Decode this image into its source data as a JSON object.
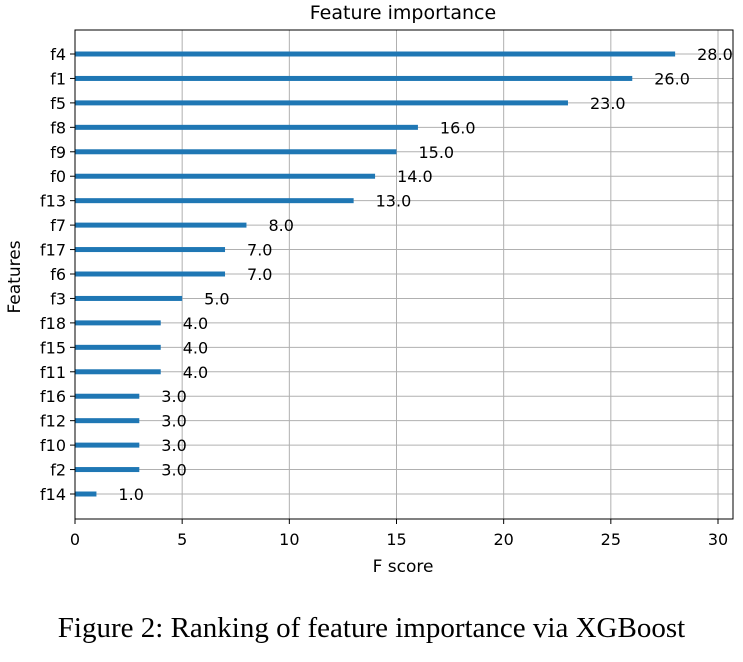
{
  "chart_data": {
    "type": "bar",
    "orientation": "horizontal",
    "title": "Feature importance",
    "xlabel": "F score",
    "ylabel": "Features",
    "xlim": [
      0,
      30.7
    ],
    "xticks": [
      0,
      5,
      10,
      15,
      20,
      25,
      30
    ],
    "grid": true,
    "bar_color": "#1f77b4",
    "categories": [
      "f4",
      "f1",
      "f5",
      "f8",
      "f9",
      "f0",
      "f13",
      "f7",
      "f17",
      "f6",
      "f3",
      "f18",
      "f15",
      "f11",
      "f16",
      "f12",
      "f10",
      "f2",
      "f14"
    ],
    "values": [
      28,
      26,
      23,
      16,
      15,
      14,
      13,
      8,
      7,
      7,
      5,
      4,
      4,
      4,
      3,
      3,
      3,
      3,
      1
    ],
    "value_labels": [
      "28.0",
      "26.0",
      "23.0",
      "16.0",
      "15.0",
      "14.0",
      "13.0",
      "8.0",
      "7.0",
      "7.0",
      "5.0",
      "4.0",
      "4.0",
      "4.0",
      "3.0",
      "3.0",
      "3.0",
      "3.0",
      "1.0"
    ]
  },
  "caption": "Figure 2: Ranking of feature importance via XGBoost"
}
